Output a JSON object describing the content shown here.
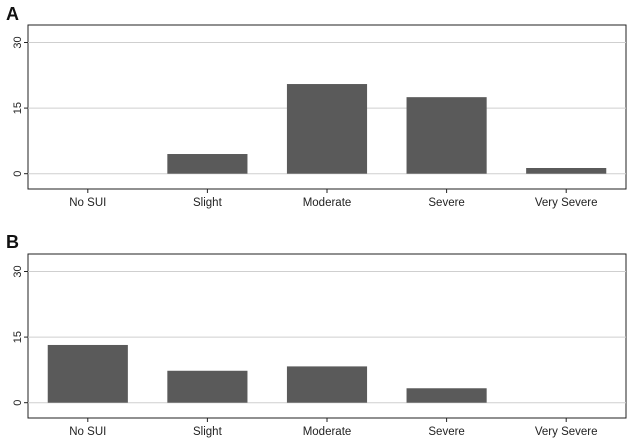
{
  "chart_data": [
    {
      "type": "bar",
      "panel_label": "A",
      "categories": [
        "No SUI",
        "Slight",
        "Moderate",
        "Severe",
        "Very Severe"
      ],
      "values": [
        0,
        4.5,
        20.5,
        17.5,
        1.3
      ],
      "yticks": [
        0,
        15,
        30
      ],
      "ylim": [
        -3.5,
        34
      ],
      "grid": true,
      "bar_color": "#5a5a5a"
    },
    {
      "type": "bar",
      "panel_label": "B",
      "categories": [
        "No SUI",
        "Slight",
        "Moderate",
        "Severe",
        "Very Severe"
      ],
      "values": [
        13.2,
        7.3,
        8.3,
        3.3,
        0
      ],
      "yticks": [
        0,
        15,
        30
      ],
      "ylim": [
        -3.5,
        34
      ],
      "grid": true,
      "bar_color": "#5a5a5a"
    }
  ]
}
